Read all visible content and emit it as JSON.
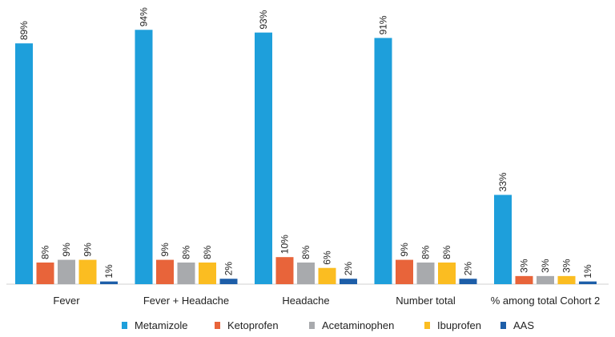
{
  "chart_data": {
    "type": "bar",
    "title": "",
    "xlabel": "",
    "ylabel": "",
    "ylim": [
      0,
      100
    ],
    "grid": false,
    "legend_position": "bottom",
    "categories": [
      "Fever",
      "Fever + Headache",
      "Headache",
      "Number total",
      "% among total Cohort 2"
    ],
    "series": [
      {
        "name": "Metamizole",
        "color": "#1e9fdb",
        "values": [
          89,
          94,
          93,
          91,
          33
        ],
        "labels": [
          "89%",
          "94%",
          "93%",
          "91%",
          "33%"
        ]
      },
      {
        "name": "Ketoprofen",
        "color": "#e8643a",
        "values": [
          8,
          9,
          10,
          9,
          3
        ],
        "labels": [
          "8%",
          "9%",
          "10%",
          "9%",
          "3%"
        ]
      },
      {
        "name": "Acetaminophen",
        "color": "#a8aaad",
        "values": [
          9,
          8,
          8,
          8,
          3
        ],
        "labels": [
          "9%",
          "8%",
          "8%",
          "8%",
          "3%"
        ]
      },
      {
        "name": "Ibuprofen",
        "color": "#fbbd21",
        "values": [
          9,
          8,
          6,
          8,
          3
        ],
        "labels": [
          "9%",
          "8%",
          "6%",
          "8%",
          "3%"
        ]
      },
      {
        "name": "AAS",
        "color": "#1d5ea8",
        "values": [
          1,
          2,
          2,
          2,
          1
        ],
        "labels": [
          "1%",
          "2%",
          "2%",
          "2%",
          "1%"
        ]
      }
    ]
  }
}
